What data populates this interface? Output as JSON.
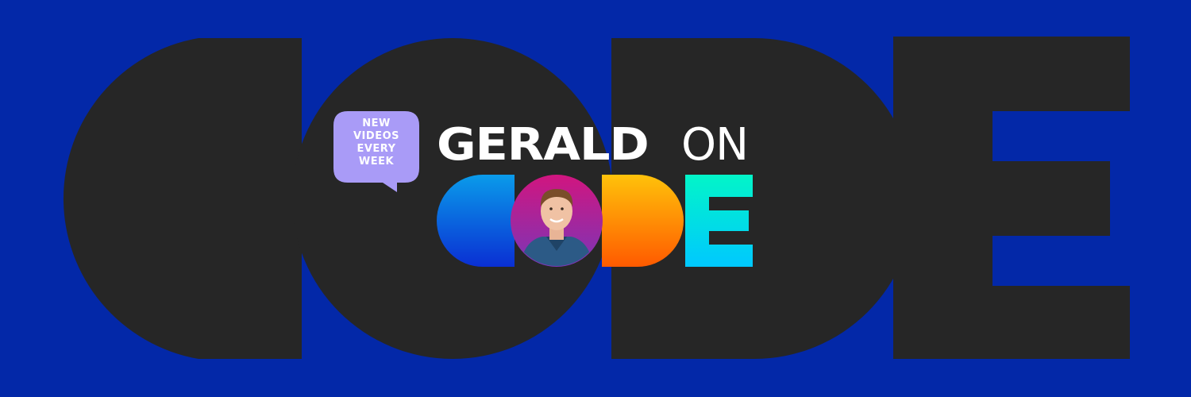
{
  "banner": {
    "background_color": "#0328a8",
    "background_word_color": "#262626",
    "bubble": {
      "lines": [
        "NEW",
        "VIDEOS",
        "EVERY",
        "WEEK"
      ],
      "color": "#a99bf7"
    },
    "title": {
      "name": "GERALD",
      "connector": "ON",
      "word": "CODE"
    },
    "avatar": {
      "icon": "avatar-photo",
      "gradient": [
        "#d1157f",
        "#7a36b8"
      ]
    },
    "letter_gradients": {
      "c": [
        "#0a9bea",
        "#0a2fd3"
      ],
      "d": [
        "#ffc20a",
        "#ff5a00"
      ],
      "e": [
        "#02f5c8",
        "#00c8ff"
      ]
    }
  }
}
